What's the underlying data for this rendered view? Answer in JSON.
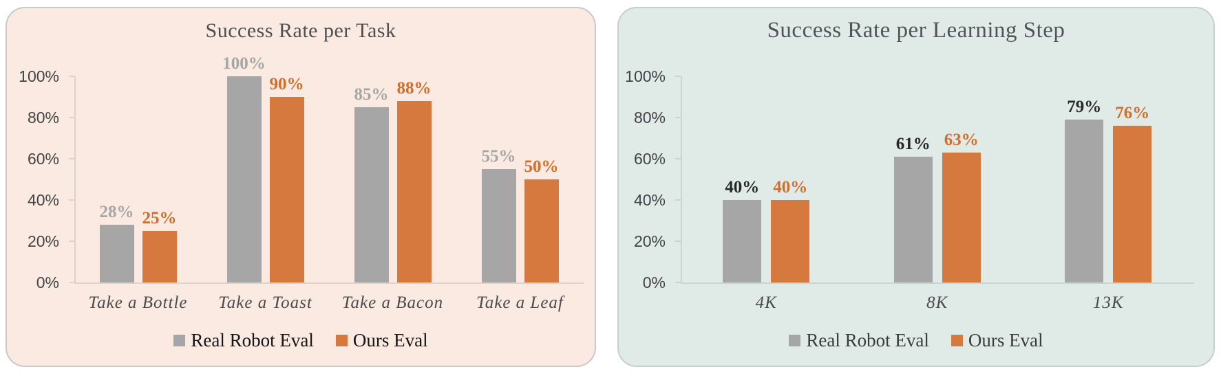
{
  "chart_data": [
    {
      "type": "bar",
      "title": "Success Rate per Task",
      "categories": [
        "Take a Bottle",
        "Take a Toast",
        "Take a Bacon",
        "Take a Leaf"
      ],
      "series": [
        {
          "name": "Real Robot Eval",
          "values": [
            28,
            100,
            85,
            55
          ],
          "bar_color": "#A6A6A6",
          "label_color": "#A6A6A6"
        },
        {
          "name": "Ours Eval",
          "values": [
            25,
            90,
            88,
            50
          ],
          "bar_color": "#D6793F",
          "label_color": "#D06E2E"
        }
      ],
      "value_labels": [
        [
          "28%",
          "100%",
          "85%",
          "55%"
        ],
        [
          "25%",
          "90%",
          "88%",
          "50%"
        ]
      ],
      "xlabel": "",
      "ylabel": "",
      "ylim": [
        0,
        100
      ],
      "y_tick_values": [
        0,
        20,
        40,
        60,
        80,
        100
      ],
      "y_tick_labels": [
        "0%",
        "20%",
        "40%",
        "60%",
        "80%",
        "100%"
      ],
      "grid": false,
      "legend_position": "bottom",
      "panel_bg": "#FAEAE1",
      "panel_border": "#C9C9C9",
      "title_color": "#4F4F52",
      "axis_color": "#DCD3CA",
      "tick_label_color": "#434345",
      "category_label_color": "#4A4A4C",
      "legend_text_color": "#161616"
    },
    {
      "type": "bar",
      "title": "Success Rate per Learning Step",
      "categories": [
        "4K",
        "8K",
        "13K"
      ],
      "series": [
        {
          "name": "Real Robot Eval",
          "values": [
            40,
            61,
            79
          ],
          "bar_color": "#A6A6A6",
          "label_color": "#272727"
        },
        {
          "name": "Ours Eval",
          "values": [
            40,
            63,
            76
          ],
          "bar_color": "#D6793F",
          "label_color": "#D06E2E"
        }
      ],
      "value_labels": [
        [
          "40%",
          "61%",
          "79%"
        ],
        [
          "40%",
          "63%",
          "76%"
        ]
      ],
      "xlabel": "",
      "ylabel": "",
      "ylim": [
        0,
        100
      ],
      "y_tick_values": [
        0,
        20,
        40,
        60,
        80,
        100
      ],
      "y_tick_labels": [
        "0%",
        "20%",
        "40%",
        "60%",
        "80%",
        "100%"
      ],
      "grid": false,
      "legend_position": "bottom",
      "panel_bg": "#E0EBE8",
      "panel_border": "#C6CFCC",
      "title_color": "#515456",
      "axis_color": "#C8D4D1",
      "tick_label_color": "#434345",
      "category_label_color": "#4A4A4C",
      "legend_text_color": "#3B3B3B"
    }
  ]
}
